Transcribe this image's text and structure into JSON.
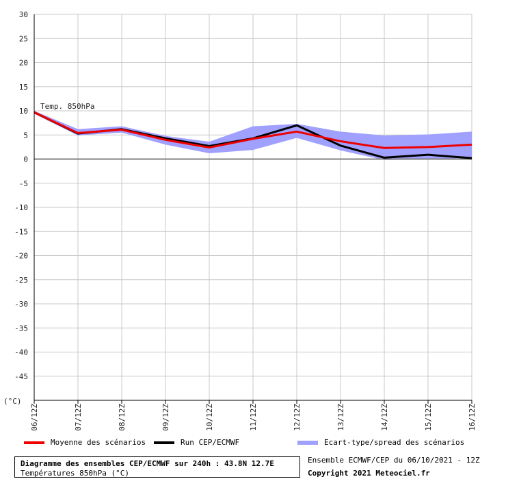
{
  "chart_data": {
    "type": "line",
    "ylabel": "(°C)",
    "ylim": [
      -50,
      30
    ],
    "y_ticks": [
      30,
      25,
      20,
      15,
      10,
      5,
      0,
      -5,
      -10,
      -15,
      -20,
      -25,
      -30,
      -35,
      -40,
      -45
    ],
    "categories": [
      "06/12Z",
      "07/12Z",
      "08/12Z",
      "09/12Z",
      "10/12Z",
      "11/12Z",
      "12/12Z",
      "13/12Z",
      "14/12Z",
      "15/12Z",
      "16/12Z"
    ],
    "annotation": "Temp. 850hPa",
    "grid": true,
    "series": [
      {
        "name": "Moyenne des scénarios",
        "color": "#ee0000",
        "values": [
          9.7,
          5.4,
          6.1,
          4.0,
          2.4,
          4.2,
          5.7,
          3.7,
          2.3,
          2.5,
          3.0
        ]
      },
      {
        "name": "Run CEP/ECMWF",
        "color": "#000000",
        "values": [
          9.7,
          5.3,
          6.2,
          4.3,
          2.7,
          4.3,
          7.0,
          2.8,
          0.3,
          0.9,
          0.2
        ]
      }
    ],
    "band": {
      "name": "Ecart-type/spread des scénarios",
      "color": "#a0a0ff",
      "upper": [
        10.0,
        6.2,
        6.8,
        4.8,
        3.6,
        6.8,
        7.3,
        5.7,
        4.9,
        5.1,
        5.7
      ],
      "lower": [
        9.4,
        4.9,
        5.5,
        3.0,
        1.2,
        1.9,
        4.4,
        1.8,
        -0.2,
        -0.1,
        0.3
      ]
    }
  },
  "footer": {
    "title": "Diagramme des ensembles CEP/ECMWF sur 240h : 43.8N 12.7E",
    "subtitle": "Températures 850hPa (°C)",
    "run_info": "Ensemble ECMWF/CEP du 06/10/2021 - 12Z",
    "copyright": "Copyright 2021 Meteociel.fr"
  }
}
